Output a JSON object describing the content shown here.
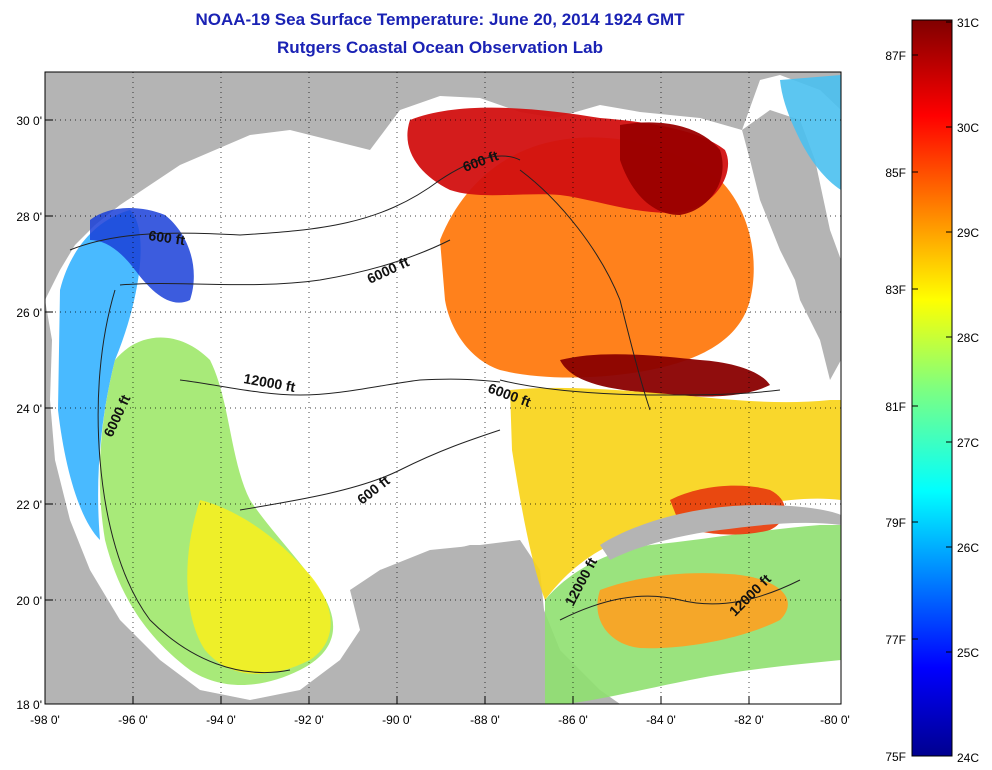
{
  "title_line1": "NOAA-19 Sea Surface Temperature:  June 20, 2014 1924 GMT",
  "title_line2": "Rutgers Coastal Ocean Observation Lab",
  "axes": {
    "x_ticks": [
      "-98 0'",
      "-96 0'",
      "-94 0'",
      "-92 0'",
      "-90 0'",
      "-88 0'",
      "-86 0'",
      "-84 0'",
      "-82 0'",
      "-80 0'"
    ],
    "y_ticks": [
      "30 0'",
      "28 0'",
      "26 0'",
      "24 0'",
      "22 0'",
      "20 0'",
      "18 0'"
    ]
  },
  "contour_labels": {
    "a": "600 ft",
    "b": "6000 ft",
    "c": "600 ft",
    "d": "12000 ft",
    "e": "6000 ft",
    "f": "6000 ft",
    "g": "600 ft",
    "h": "12000 ft",
    "i": "12000 ft"
  },
  "colorbar": {
    "celsius": [
      "31C",
      "30C",
      "29C",
      "28C",
      "27C",
      "26C",
      "25C",
      "24C"
    ],
    "fahrenheit": [
      "87F",
      "85F",
      "83F",
      "81F",
      "79F",
      "77F",
      "75F"
    ]
  },
  "colors": {
    "land": "#b4b4b4",
    "cloud": "#ffffff",
    "title": "#1a22b4"
  }
}
